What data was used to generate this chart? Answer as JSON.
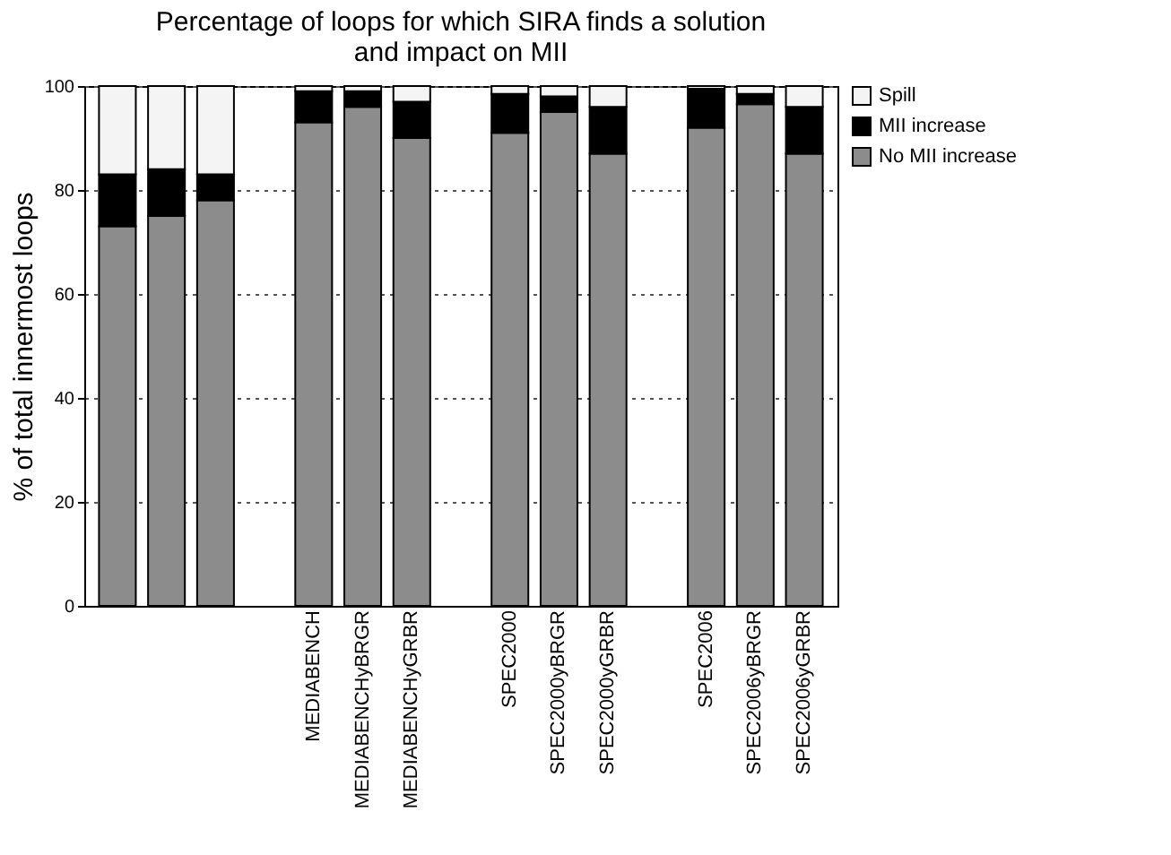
{
  "chart_data": {
    "type": "bar",
    "stacked": true,
    "title": "Percentage of loops for which SIRA finds a solution\nand impact on MII",
    "ylabel": "% of total innermost loops",
    "categories": [
      null,
      null,
      null,
      null,
      "MEDIABENCH",
      "MEDIABENCHyBRGR",
      "MEDIABENCHyGRBR",
      null,
      "SPEC2000",
      "SPEC2000yBRGR",
      "SPEC2000yGRBR",
      null,
      "SPEC2006",
      "SPEC2006yBRGR",
      "SPEC2006yGRBR"
    ],
    "series": [
      {
        "name": "No MII increase",
        "color": "#8c8c8c",
        "values": [
          73,
          75,
          78,
          null,
          93,
          96,
          90,
          null,
          91,
          95,
          87,
          null,
          92,
          96.5,
          87
        ]
      },
      {
        "name": "MII increase",
        "color": "#000000",
        "values": [
          10,
          9,
          5,
          null,
          6,
          3,
          7,
          null,
          7.5,
          3,
          9,
          null,
          7.5,
          2,
          9
        ]
      },
      {
        "name": "Spill",
        "color": "#f4f4f4",
        "values": [
          17,
          16,
          17,
          null,
          1,
          1,
          3,
          null,
          1.5,
          2,
          4,
          null,
          0.5,
          1.5,
          4
        ]
      }
    ],
    "ylim": [
      0,
      100
    ],
    "yticks": [
      0,
      20,
      40,
      60,
      80,
      100
    ],
    "grid": "y",
    "legend": "top right"
  }
}
